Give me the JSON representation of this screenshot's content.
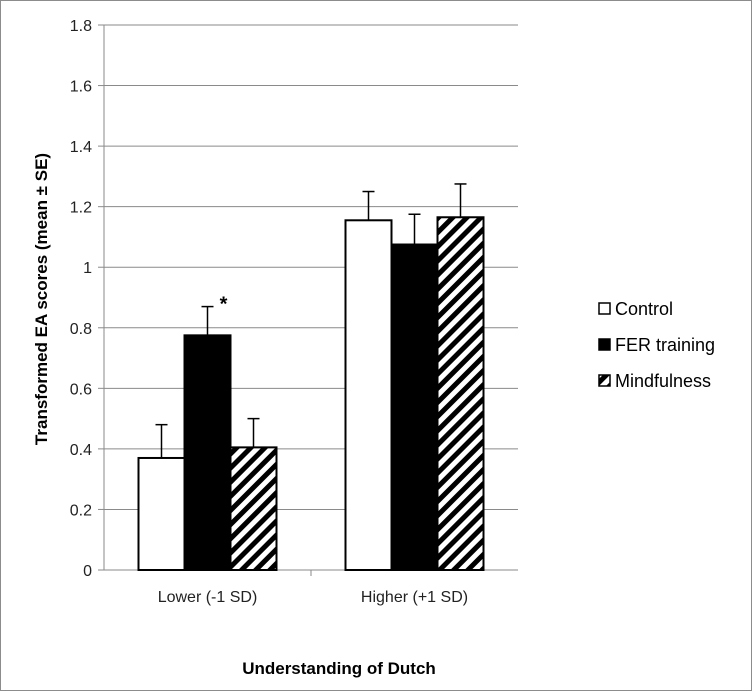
{
  "chart_data": {
    "type": "bar",
    "categories": [
      "Lower (-1 SD)",
      "Higher (+1 SD)"
    ],
    "series": [
      {
        "name": "Control",
        "values": [
          0.37,
          1.155
        ],
        "errors": [
          0.11,
          0.095
        ],
        "fill": "#ffffff",
        "pattern": "solid"
      },
      {
        "name": "FER training",
        "values": [
          0.775,
          1.075
        ],
        "errors": [
          0.095,
          0.1
        ],
        "fill": "#000000",
        "pattern": "solid"
      },
      {
        "name": "Mindfulness",
        "values": [
          0.405,
          1.165
        ],
        "errors": [
          0.095,
          0.11
        ],
        "fill": "#ffffff",
        "pattern": "diagonal-stripes"
      }
    ],
    "xlabel": "Understanding of Dutch",
    "ylabel": "Transformed EA scores (mean ± SE)",
    "ylim": [
      0,
      1.8
    ],
    "yticks": [
      "0",
      "0.2",
      "0.4",
      "0.6",
      "0.8",
      "1",
      "1.2",
      "1.4",
      "1.6",
      "1.8"
    ],
    "grid": "horizontal",
    "legend": "right",
    "annotations": [
      {
        "text": "*",
        "category": 0,
        "series": 1
      }
    ]
  }
}
